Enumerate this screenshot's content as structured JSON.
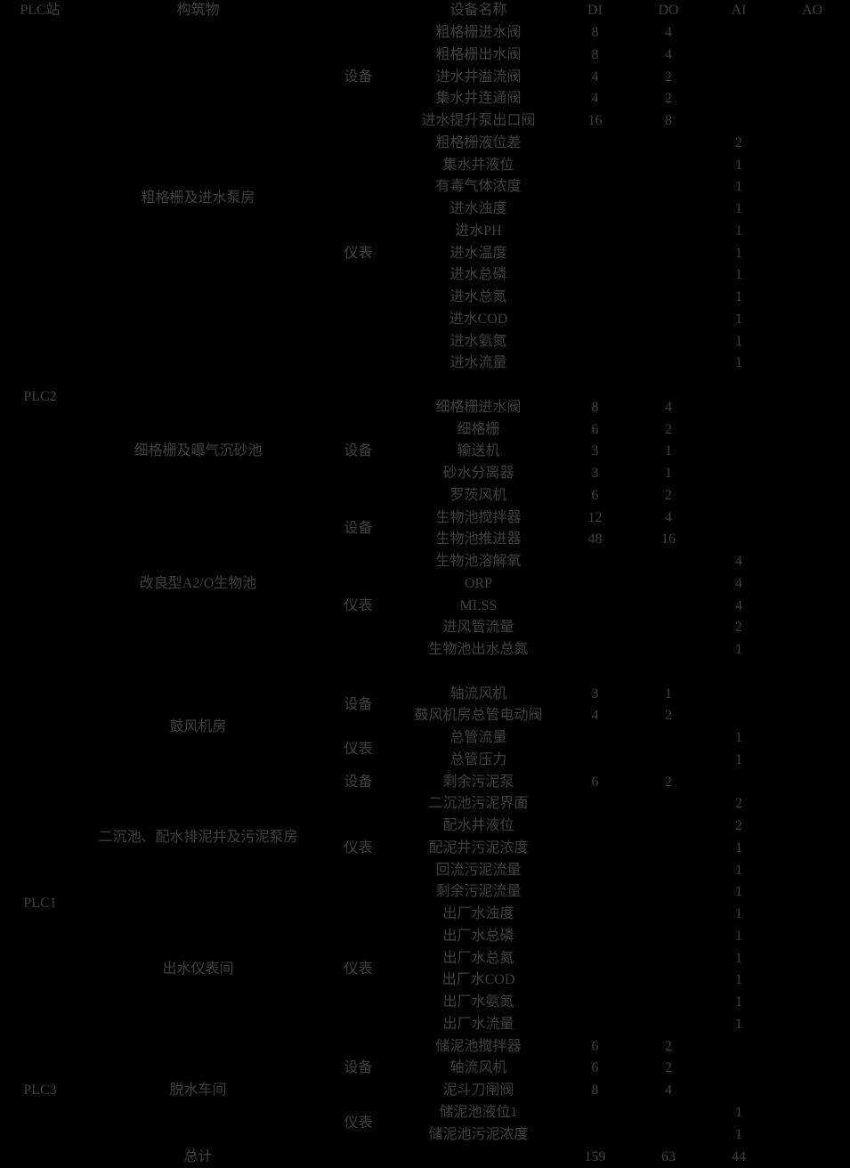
{
  "colors": {
    "background": "#000000",
    "text": "#3f3f3f"
  },
  "table": {
    "columns": {
      "plc": "PLC站",
      "structure": "构筑物",
      "category": "",
      "device": "设备名称",
      "di": "DI",
      "do": "DO",
      "ai": "AI",
      "ao": "AO"
    },
    "plc_groups": [
      {
        "plc_label": "PLC2",
        "sections": [
          {
            "structure": "粗格栅及进水泵房",
            "spacer_after": true,
            "subgroups": [
              {
                "category": "设备",
                "rows": [
                  {
                    "device": "粗格栅进水阀",
                    "di": "8",
                    "do": "4",
                    "ai": "",
                    "ao": ""
                  },
                  {
                    "device": "粗格栅出水阀",
                    "di": "8",
                    "do": "4",
                    "ai": "",
                    "ao": ""
                  },
                  {
                    "device": "进水井溢流阀",
                    "di": "4",
                    "do": "2",
                    "ai": "",
                    "ao": ""
                  },
                  {
                    "device": "集水井连通阀",
                    "di": "4",
                    "do": "2",
                    "ai": "",
                    "ao": ""
                  },
                  {
                    "device": "进水提升泵出口阀",
                    "di": "16",
                    "do": "8",
                    "ai": "",
                    "ao": ""
                  }
                ]
              },
              {
                "category": "仪表",
                "rows": [
                  {
                    "device": "粗格栅液位差",
                    "di": "",
                    "do": "",
                    "ai": "2",
                    "ao": ""
                  },
                  {
                    "device": "集水井液位",
                    "di": "",
                    "do": "",
                    "ai": "1",
                    "ao": ""
                  },
                  {
                    "device": "有毒气体浓度",
                    "di": "",
                    "do": "",
                    "ai": "1",
                    "ao": ""
                  },
                  {
                    "device": "进水浊度",
                    "di": "",
                    "do": "",
                    "ai": "1",
                    "ao": ""
                  },
                  {
                    "device": "进水PH",
                    "di": "",
                    "do": "",
                    "ai": "1",
                    "ao": ""
                  },
                  {
                    "device": "进水温度",
                    "di": "",
                    "do": "",
                    "ai": "1",
                    "ao": ""
                  },
                  {
                    "device": "进水总磷",
                    "di": "",
                    "do": "",
                    "ai": "1",
                    "ao": ""
                  },
                  {
                    "device": "进水总氮",
                    "di": "",
                    "do": "",
                    "ai": "1",
                    "ao": ""
                  },
                  {
                    "device": "进水COD",
                    "di": "",
                    "do": "",
                    "ai": "1",
                    "ao": ""
                  },
                  {
                    "device": "进水氨氮",
                    "di": "",
                    "do": "",
                    "ai": "1",
                    "ao": ""
                  },
                  {
                    "device": "进水流量",
                    "di": "",
                    "do": "",
                    "ai": "1",
                    "ao": ""
                  }
                ]
              }
            ]
          },
          {
            "structure": "细格栅及曝气沉砂池",
            "spacer_after": false,
            "subgroups": [
              {
                "category": "设备",
                "rows": [
                  {
                    "device": "细格栅进水阀",
                    "di": "8",
                    "do": "4",
                    "ai": "",
                    "ao": ""
                  },
                  {
                    "device": "细格栅",
                    "di": "6",
                    "do": "2",
                    "ai": "",
                    "ao": ""
                  },
                  {
                    "device": "输送机",
                    "di": "3",
                    "do": "1",
                    "ai": "",
                    "ao": ""
                  },
                  {
                    "device": "砂水分离器",
                    "di": "3",
                    "do": "1",
                    "ai": "",
                    "ao": ""
                  },
                  {
                    "device": "罗茨风机",
                    "di": "6",
                    "do": "2",
                    "ai": "",
                    "ao": ""
                  }
                ]
              }
            ]
          },
          {
            "structure": "改良型A2/O生物池",
            "spacer_after": true,
            "subgroups": [
              {
                "category": "设备",
                "rows": [
                  {
                    "device": "生物池搅拌器",
                    "di": "12",
                    "do": "4",
                    "ai": "",
                    "ao": ""
                  },
                  {
                    "device": "生物池推进器",
                    "di": "48",
                    "do": "16",
                    "ai": "",
                    "ao": ""
                  }
                ]
              },
              {
                "category": "仪表",
                "rows": [
                  {
                    "device": "生物池溶解氧",
                    "di": "",
                    "do": "",
                    "ai": "4",
                    "ao": ""
                  },
                  {
                    "device": "ORP",
                    "di": "",
                    "do": "",
                    "ai": "4",
                    "ao": ""
                  },
                  {
                    "device": "MLSS",
                    "di": "",
                    "do": "",
                    "ai": "4",
                    "ao": ""
                  },
                  {
                    "device": "进风管流量",
                    "di": "",
                    "do": "",
                    "ai": "2",
                    "ao": ""
                  },
                  {
                    "device": "生物池出水总氮",
                    "di": "",
                    "do": "",
                    "ai": "1",
                    "ao": ""
                  }
                ]
              }
            ]
          },
          {
            "structure": "鼓风机房",
            "spacer_after": false,
            "subgroups": [
              {
                "category": "设备",
                "rows": [
                  {
                    "device": "轴流风机",
                    "di": "3",
                    "do": "1",
                    "ai": "",
                    "ao": ""
                  },
                  {
                    "device": "鼓风机房总管电动阀",
                    "di": "4",
                    "do": "2",
                    "ai": "",
                    "ao": ""
                  }
                ]
              },
              {
                "category": "仪表",
                "rows": [
                  {
                    "device": "总管流量",
                    "di": "",
                    "do": "",
                    "ai": "1",
                    "ao": ""
                  },
                  {
                    "device": "总管压力",
                    "di": "",
                    "do": "",
                    "ai": "1",
                    "ao": ""
                  }
                ]
              }
            ]
          }
        ]
      },
      {
        "plc_label": "PLC1",
        "sections": [
          {
            "structure": "二沉池、配水排泥井及污泥泵房",
            "spacer_after": false,
            "subgroups": [
              {
                "category": "设备",
                "rows": [
                  {
                    "device": "剩余污泥泵",
                    "di": "6",
                    "do": "2",
                    "ai": "",
                    "ao": ""
                  }
                ]
              },
              {
                "category": "仪表",
                "rows": [
                  {
                    "device": "二沉池污泥界面",
                    "di": "",
                    "do": "",
                    "ai": "2",
                    "ao": ""
                  },
                  {
                    "device": "配水井液位",
                    "di": "",
                    "do": "",
                    "ai": "2",
                    "ao": ""
                  },
                  {
                    "device": "配泥井污泥浓度",
                    "di": "",
                    "do": "",
                    "ai": "1",
                    "ao": ""
                  },
                  {
                    "device": "回流污泥流量",
                    "di": "",
                    "do": "",
                    "ai": "1",
                    "ao": ""
                  },
                  {
                    "device": "剩余污泥流量",
                    "di": "",
                    "do": "",
                    "ai": "1",
                    "ao": ""
                  }
                ]
              }
            ]
          },
          {
            "structure": "出水仪表间",
            "spacer_after": false,
            "subgroups": [
              {
                "category": "仪表",
                "rows": [
                  {
                    "device": "出厂水浊度",
                    "di": "",
                    "do": "",
                    "ai": "1",
                    "ao": ""
                  },
                  {
                    "device": "出厂水总磷",
                    "di": "",
                    "do": "",
                    "ai": "1",
                    "ao": ""
                  },
                  {
                    "device": "出厂水总氮",
                    "di": "",
                    "do": "",
                    "ai": "1",
                    "ao": ""
                  },
                  {
                    "device": "出厂水COD",
                    "di": "",
                    "do": "",
                    "ai": "1",
                    "ao": ""
                  },
                  {
                    "device": "出厂水氨氮",
                    "di": "",
                    "do": "",
                    "ai": "1",
                    "ao": ""
                  },
                  {
                    "device": "出厂水流量",
                    "di": "",
                    "do": "",
                    "ai": "1",
                    "ao": ""
                  }
                ]
              }
            ]
          }
        ]
      },
      {
        "plc_label": "PLC3",
        "sections": [
          {
            "structure": "脱水车间",
            "spacer_after": false,
            "subgroups": [
              {
                "category": "设备",
                "rows": [
                  {
                    "device": "储泥池搅拌器",
                    "di": "6",
                    "do": "2",
                    "ai": "",
                    "ao": ""
                  },
                  {
                    "device": "轴流风机",
                    "di": "6",
                    "do": "2",
                    "ai": "",
                    "ao": ""
                  },
                  {
                    "device": "泥斗刀闸阀",
                    "di": "8",
                    "do": "4",
                    "ai": "",
                    "ao": ""
                  }
                ]
              },
              {
                "category": "仪表",
                "rows": [
                  {
                    "device": "储泥池液位1",
                    "di": "",
                    "do": "",
                    "ai": "1",
                    "ao": ""
                  },
                  {
                    "device": "储泥池污泥浓度",
                    "di": "",
                    "do": "",
                    "ai": "1",
                    "ao": ""
                  }
                ]
              }
            ]
          }
        ]
      }
    ],
    "total_row": {
      "label": "总计",
      "di": "159",
      "do": "63",
      "ai": "44",
      "ao": ""
    }
  }
}
